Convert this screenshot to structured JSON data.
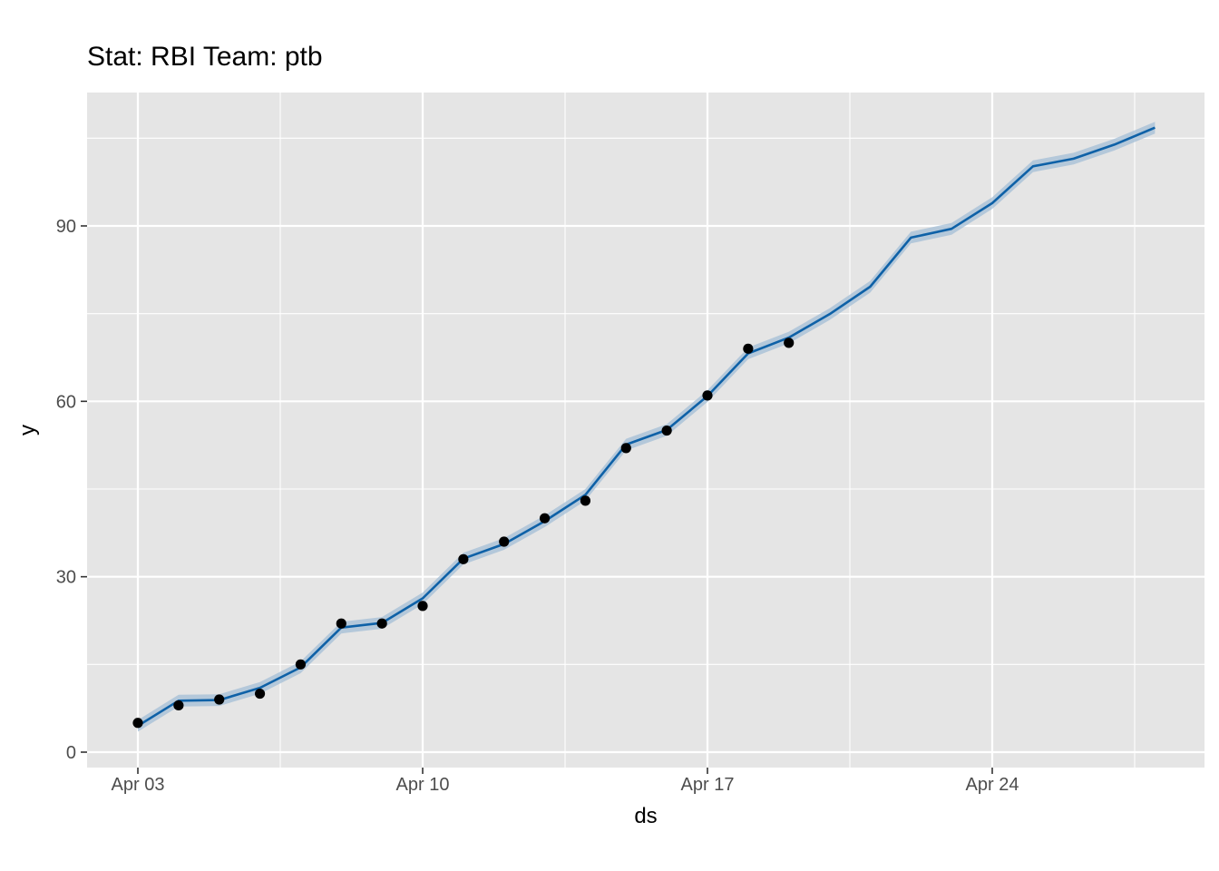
{
  "chart_data": {
    "type": "line",
    "title": "Stat: RBI Team: ptb",
    "xlabel": "ds",
    "ylabel": "y",
    "x_axis_type": "date",
    "x_tick_labels": [
      "Apr 03",
      "Apr 10",
      "Apr 17",
      "Apr 24"
    ],
    "x_tick_values": [
      "2024-04-03",
      "2024-04-10",
      "2024-04-17",
      "2024-04-24"
    ],
    "y_ticks": [
      0,
      30,
      60,
      90
    ],
    "xlim": [
      "2024-04-02",
      "2024-04-29"
    ],
    "ylim": [
      -2,
      112
    ],
    "grid": true,
    "colors": {
      "panel": "#e5e5e5",
      "grid": "#ffffff",
      "forecast_line": "#0e61a7",
      "interval_band": "#a3bdd6",
      "points": "#000000"
    },
    "series": [
      {
        "role": "forecast",
        "x": [
          "2024-04-03",
          "2024-04-04",
          "2024-04-05",
          "2024-04-06",
          "2024-04-07",
          "2024-04-08",
          "2024-04-09",
          "2024-04-10",
          "2024-04-11",
          "2024-04-12",
          "2024-04-13",
          "2024-04-14",
          "2024-04-15",
          "2024-04-16",
          "2024-04-17",
          "2024-04-18",
          "2024-04-19",
          "2024-04-20",
          "2024-04-21",
          "2024-04-22",
          "2024-04-23",
          "2024-04-24",
          "2024-04-25",
          "2024-04-26",
          "2024-04-27",
          "2024-04-28"
        ],
        "values": [
          4.5,
          8.8,
          8.9,
          11,
          14.5,
          21.3,
          22.1,
          26.3,
          33.1,
          35.6,
          39.5,
          44,
          52.6,
          55.1,
          60.9,
          68.2,
          70.9,
          74.9,
          79.6,
          88,
          89.5,
          93.9,
          100.2,
          101.5,
          103.9,
          106.8
        ],
        "lower": [
          3.5,
          7.8,
          7.9,
          10,
          13.5,
          20.3,
          21.1,
          25.3,
          32.1,
          34.6,
          38.5,
          43,
          51.6,
          54.1,
          59.9,
          67.2,
          69.9,
          73.9,
          78.6,
          87,
          88.5,
          92.9,
          99.2,
          100.5,
          102.9,
          105.8
        ],
        "upper": [
          5.5,
          9.8,
          9.9,
          12,
          15.5,
          22.3,
          23.1,
          27.3,
          34.1,
          36.6,
          40.5,
          45,
          53.6,
          56.1,
          61.9,
          69.2,
          71.9,
          75.9,
          80.6,
          89,
          90.5,
          94.9,
          101.2,
          102.5,
          104.9,
          107.8
        ]
      },
      {
        "role": "observed",
        "x": [
          "2024-04-03",
          "2024-04-04",
          "2024-04-05",
          "2024-04-06",
          "2024-04-07",
          "2024-04-08",
          "2024-04-09",
          "2024-04-10",
          "2024-04-11",
          "2024-04-12",
          "2024-04-13",
          "2024-04-14",
          "2024-04-15",
          "2024-04-16",
          "2024-04-17",
          "2024-04-18",
          "2024-04-19"
        ],
        "values": [
          5,
          8,
          9,
          10,
          15,
          22,
          22,
          25,
          33,
          36,
          40,
          43,
          52,
          55,
          61,
          69,
          70
        ]
      }
    ]
  }
}
